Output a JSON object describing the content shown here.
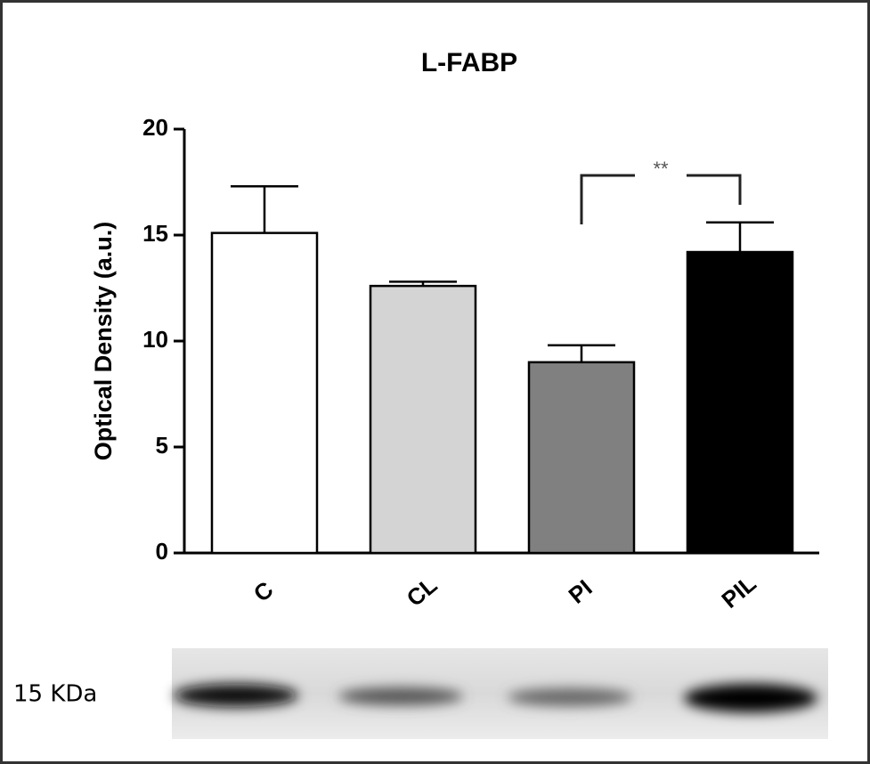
{
  "chart_data": {
    "type": "bar",
    "title": "L-FABP",
    "y_label": "Optical Density (a.u.)",
    "categories": [
      "C",
      "CL",
      "PI",
      "PIL"
    ],
    "values": [
      15.1,
      12.6,
      9.0,
      14.2
    ],
    "errors": [
      2.2,
      0.2,
      0.8,
      1.4
    ],
    "colors": [
      "#ffffff",
      "#d4d4d4",
      "#808080",
      "#000000"
    ],
    "ylim": [
      0,
      20
    ],
    "yticks": [
      0,
      5,
      10,
      15,
      20
    ],
    "annotation": "**",
    "blot_label": "15 KDa"
  }
}
